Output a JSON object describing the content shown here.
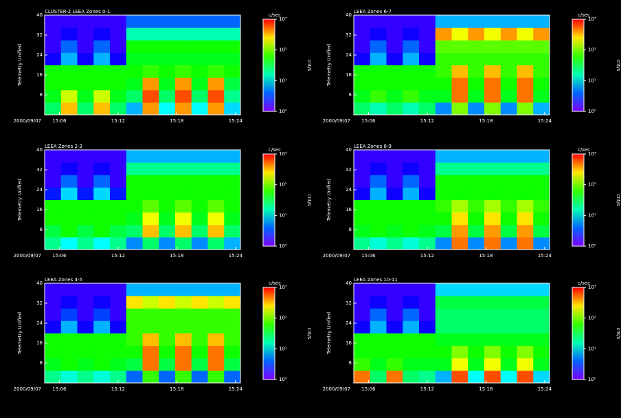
{
  "chart_data": [
    {
      "type": "heatmap",
      "title": "CLUSTER-2 LEEA Zones 0-1",
      "y_label": "Telemetry Unified",
      "date": "2000/09/07",
      "xlim": [
        4.5,
        24.5
      ],
      "xticks": [
        {
          "value": 6,
          "label": "15:06"
        },
        {
          "value": 12,
          "label": "15:12"
        },
        {
          "value": 18,
          "label": "15:18"
        },
        {
          "value": 24,
          "label": "15:24"
        }
      ],
      "ylim": [
        0,
        40
      ],
      "yticks": [
        8,
        16,
        24,
        32,
        40
      ],
      "z": [
        [
          1.4,
          2.5,
          1.4,
          2.5,
          1.4,
          0.8,
          2.6,
          1.0,
          2.6,
          1.0,
          2.6,
          0.9
        ],
        [
          1.6,
          2.2,
          1.6,
          2.2,
          1.6,
          1.4,
          2.8,
          1.4,
          2.8,
          1.4,
          2.8,
          1.3
        ],
        [
          1.7,
          1.7,
          1.7,
          1.7,
          1.7,
          1.6,
          2.6,
          1.6,
          2.6,
          1.6,
          2.6,
          1.5
        ],
        [
          1.7,
          1.7,
          1.7,
          1.7,
          1.7,
          1.7,
          1.8,
          1.7,
          1.8,
          1.7,
          1.8,
          1.7
        ],
        [
          0.3,
          0.8,
          0.3,
          0.8,
          0.3,
          1.6,
          1.6,
          1.6,
          1.6,
          1.6,
          1.6,
          1.6
        ],
        [
          0.2,
          0.6,
          0.2,
          0.6,
          0.2,
          1.7,
          1.7,
          1.7,
          1.7,
          1.7,
          1.7,
          1.7
        ],
        [
          0.2,
          0.3,
          0.2,
          0.3,
          0.2,
          1.2,
          1.2,
          1.2,
          1.2,
          1.2,
          1.2,
          1.2
        ],
        [
          0.2,
          0.2,
          0.2,
          0.2,
          0.2,
          0.6,
          0.6,
          0.6,
          0.6,
          0.6,
          0.6,
          0.6
        ]
      ],
      "colorbar": {
        "label": "c/sec",
        "side_label": "cnt/s",
        "lim": [
          0,
          3
        ],
        "ticks": [
          {
            "value": 0,
            "label": "10⁰"
          },
          {
            "value": 1,
            "label": "10¹"
          },
          {
            "value": 2,
            "label": "10²"
          },
          {
            "value": 3,
            "label": "10³"
          }
        ]
      }
    },
    {
      "type": "heatmap",
      "title": "LEEA Zones 2-3",
      "y_label": "Telemetry Unified",
      "date": "2000/09/07",
      "xlim": [
        4.5,
        24.5
      ],
      "xticks": [
        {
          "value": 6,
          "label": "15:06"
        },
        {
          "value": 12,
          "label": "15:12"
        },
        {
          "value": 18,
          "label": "15:18"
        },
        {
          "value": 24,
          "label": "15:24"
        }
      ],
      "ylim": [
        0,
        40
      ],
      "yticks": [
        8,
        16,
        24,
        32,
        40
      ],
      "z": [
        [
          1.3,
          1.0,
          1.3,
          1.0,
          1.3,
          0.7,
          1.4,
          0.7,
          1.4,
          0.7,
          1.4,
          0.8
        ],
        [
          1.5,
          1.7,
          1.5,
          1.7,
          1.5,
          1.4,
          2.5,
          1.4,
          2.5,
          1.4,
          2.5,
          1.4
        ],
        [
          1.7,
          1.7,
          1.7,
          1.7,
          1.7,
          1.6,
          2.3,
          1.6,
          2.3,
          1.6,
          2.3,
          1.6
        ],
        [
          1.7,
          1.7,
          1.7,
          1.7,
          1.7,
          1.7,
          1.9,
          1.7,
          1.9,
          1.7,
          1.9,
          1.7
        ],
        [
          0.4,
          0.9,
          0.4,
          0.9,
          0.4,
          1.7,
          1.7,
          1.7,
          1.7,
          1.7,
          1.7,
          1.7
        ],
        [
          0.2,
          0.6,
          0.2,
          0.6,
          0.2,
          1.7,
          1.7,
          1.7,
          1.7,
          1.7,
          1.7,
          1.7
        ],
        [
          0.2,
          0.3,
          0.2,
          0.3,
          0.2,
          1.3,
          1.3,
          1.3,
          1.3,
          1.3,
          1.3,
          1.3
        ],
        [
          0.2,
          0.2,
          0.2,
          0.2,
          0.2,
          0.8,
          0.8,
          0.8,
          0.8,
          0.8,
          0.8,
          0.8
        ]
      ],
      "colorbar": {
        "label": "c/sec",
        "side_label": "cnt/s",
        "lim": [
          0,
          3
        ],
        "ticks": [
          {
            "value": 0,
            "label": "10⁰"
          },
          {
            "value": 1,
            "label": "10¹"
          },
          {
            "value": 2,
            "label": "10²"
          },
          {
            "value": 3,
            "label": "10³"
          }
        ]
      }
    },
    {
      "type": "heatmap",
      "title": "LEEA Zones 4-5",
      "y_label": "Telemetry Unified",
      "date": "2000/09/07",
      "xlim": [
        4.5,
        24.5
      ],
      "xticks": [
        {
          "value": 6,
          "label": "15:06"
        },
        {
          "value": 12,
          "label": "15:12"
        },
        {
          "value": 18,
          "label": "15:18"
        },
        {
          "value": 24,
          "label": "15:24"
        }
      ],
      "ylim": [
        0,
        40
      ],
      "yticks": [
        8,
        16,
        24,
        32,
        40
      ],
      "z": [
        [
          1.3,
          1.1,
          1.3,
          1.1,
          1.3,
          0.6,
          1.8,
          0.6,
          1.8,
          0.6,
          1.8,
          0.6
        ],
        [
          1.6,
          1.7,
          1.6,
          1.7,
          1.6,
          1.5,
          2.7,
          1.5,
          2.7,
          1.5,
          2.7,
          1.5
        ],
        [
          1.7,
          1.7,
          1.7,
          1.7,
          1.7,
          1.7,
          2.7,
          1.7,
          2.7,
          1.7,
          2.7,
          1.7
        ],
        [
          1.7,
          1.7,
          1.7,
          1.7,
          1.7,
          1.8,
          2.5,
          1.8,
          2.5,
          1.8,
          2.5,
          1.8
        ],
        [
          0.3,
          0.8,
          0.3,
          0.8,
          0.3,
          1.8,
          1.8,
          1.8,
          1.8,
          1.8,
          1.8,
          1.8
        ],
        [
          0.2,
          0.5,
          0.2,
          0.5,
          0.2,
          1.8,
          1.8,
          1.8,
          1.8,
          1.8,
          1.8,
          1.8
        ],
        [
          0.2,
          0.3,
          0.2,
          0.3,
          0.2,
          2.4,
          2.2,
          2.4,
          2.2,
          2.4,
          2.2,
          2.4
        ],
        [
          0.2,
          0.2,
          0.2,
          0.2,
          0.2,
          0.8,
          0.8,
          0.8,
          0.8,
          0.8,
          0.8,
          0.8
        ]
      ],
      "colorbar": {
        "label": "c/sec",
        "side_label": "cnt/s",
        "lim": [
          0,
          3
        ],
        "ticks": [
          {
            "value": 0,
            "label": "10⁰"
          },
          {
            "value": 1,
            "label": "10¹"
          },
          {
            "value": 2,
            "label": "10²"
          },
          {
            "value": 3,
            "label": "10³"
          }
        ]
      }
    },
    {
      "type": "heatmap",
      "title": "LEEA Zones 6-7",
      "y_label": "Telemetry Unified",
      "date": "2000/09/07",
      "xlim": [
        4.5,
        24.5
      ],
      "xticks": [
        {
          "value": 6,
          "label": "15:06"
        },
        {
          "value": 12,
          "label": "15:12"
        },
        {
          "value": 18,
          "label": "15:18"
        },
        {
          "value": 24,
          "label": "15:24"
        }
      ],
      "ylim": [
        0,
        40
      ],
      "yticks": [
        8,
        16,
        24,
        32,
        40
      ],
      "z": [
        [
          1.4,
          1.2,
          1.4,
          1.2,
          1.4,
          0.7,
          2.0,
          0.7,
          2.0,
          0.7,
          2.0,
          0.8
        ],
        [
          1.6,
          1.8,
          1.6,
          1.8,
          1.6,
          1.6,
          2.7,
          1.6,
          2.7,
          1.6,
          2.7,
          1.6
        ],
        [
          1.7,
          1.7,
          1.7,
          1.7,
          1.7,
          1.7,
          2.7,
          1.7,
          2.7,
          1.7,
          2.7,
          1.7
        ],
        [
          1.7,
          1.7,
          1.7,
          1.7,
          1.7,
          1.8,
          2.5,
          1.8,
          2.5,
          1.8,
          2.5,
          1.8
        ],
        [
          0.3,
          0.8,
          0.3,
          0.8,
          0.3,
          1.8,
          1.8,
          1.8,
          1.8,
          1.8,
          1.8,
          1.8
        ],
        [
          0.2,
          0.6,
          0.2,
          0.6,
          0.2,
          1.9,
          1.9,
          1.9,
          1.9,
          1.9,
          1.9,
          1.9
        ],
        [
          0.2,
          0.3,
          0.2,
          0.3,
          0.2,
          2.6,
          2.3,
          2.6,
          2.3,
          2.6,
          2.3,
          2.6
        ],
        [
          0.2,
          0.2,
          0.2,
          0.2,
          0.2,
          0.8,
          0.8,
          0.8,
          0.8,
          0.8,
          0.8,
          0.8
        ]
      ],
      "colorbar": {
        "label": "c/sec",
        "side_label": "cnt/s",
        "lim": [
          0,
          3
        ],
        "ticks": [
          {
            "value": 0,
            "label": "10⁰"
          },
          {
            "value": 1,
            "label": "10¹"
          },
          {
            "value": 2,
            "label": "10²"
          },
          {
            "value": 3,
            "label": "10³"
          }
        ]
      }
    },
    {
      "type": "heatmap",
      "title": "LEEA Zones 8-9",
      "y_label": "Telemetry Unified",
      "date": "2000/09/07",
      "xlim": [
        4.5,
        24.5
      ],
      "xticks": [
        {
          "value": 6,
          "label": "15:06"
        },
        {
          "value": 12,
          "label": "15:12"
        },
        {
          "value": 18,
          "label": "15:18"
        },
        {
          "value": 24,
          "label": "15:24"
        }
      ],
      "ylim": [
        0,
        40
      ],
      "yticks": [
        8,
        16,
        24,
        32,
        40
      ],
      "z": [
        [
          1.3,
          1.1,
          1.3,
          1.1,
          1.3,
          0.7,
          2.7,
          0.7,
          2.7,
          0.7,
          2.7,
          0.7
        ],
        [
          1.6,
          1.7,
          1.6,
          1.7,
          1.6,
          1.5,
          2.6,
          1.5,
          2.6,
          1.5,
          2.6,
          1.5
        ],
        [
          1.7,
          1.7,
          1.7,
          1.7,
          1.7,
          1.7,
          2.4,
          1.7,
          2.4,
          1.7,
          2.4,
          1.7
        ],
        [
          1.7,
          1.7,
          1.7,
          1.7,
          1.7,
          1.8,
          2.1,
          1.8,
          2.1,
          1.8,
          2.1,
          1.8
        ],
        [
          0.3,
          0.8,
          0.3,
          0.8,
          0.3,
          1.7,
          1.7,
          1.7,
          1.7,
          1.7,
          1.7,
          1.7
        ],
        [
          0.2,
          0.6,
          0.2,
          0.6,
          0.2,
          1.7,
          1.7,
          1.7,
          1.7,
          1.7,
          1.7,
          1.7
        ],
        [
          0.2,
          0.3,
          0.2,
          0.3,
          0.2,
          1.3,
          1.3,
          1.3,
          1.3,
          1.3,
          1.3,
          1.3
        ],
        [
          0.2,
          0.2,
          0.2,
          0.2,
          0.2,
          0.8,
          0.8,
          0.8,
          0.8,
          0.8,
          0.8,
          0.8
        ]
      ],
      "colorbar": {
        "label": "c/sec",
        "side_label": "cnt/s",
        "lim": [
          0,
          3
        ],
        "ticks": [
          {
            "value": 0,
            "label": "10⁰"
          },
          {
            "value": 1,
            "label": "10¹"
          },
          {
            "value": 2,
            "label": "10²"
          },
          {
            "value": 3,
            "label": "10³"
          }
        ]
      }
    },
    {
      "type": "heatmap",
      "title": "LEEA Zones 10-11",
      "y_label": "Telemetry Unified",
      "date": "2000/09/07",
      "xlim": [
        4.5,
        24.5
      ],
      "xticks": [
        {
          "value": 6,
          "label": "15:06"
        },
        {
          "value": 12,
          "label": "15:12"
        },
        {
          "value": 18,
          "label": "15:18"
        },
        {
          "value": 24,
          "label": "15:24"
        }
      ],
      "ylim": [
        0,
        40
      ],
      "yticks": [
        8,
        16,
        24,
        32,
        40
      ],
      "z": [
        [
          2.7,
          1.4,
          2.7,
          1.4,
          1.3,
          0.8,
          2.8,
          1.0,
          2.8,
          1.0,
          2.8,
          0.9
        ],
        [
          1.8,
          1.6,
          1.8,
          1.6,
          1.6,
          1.6,
          2.3,
          1.6,
          2.3,
          1.6,
          2.3,
          1.6
        ],
        [
          1.7,
          1.7,
          1.7,
          1.7,
          1.7,
          1.7,
          2.0,
          1.7,
          2.0,
          1.7,
          2.0,
          1.7
        ],
        [
          1.7,
          1.7,
          1.7,
          1.7,
          1.7,
          1.6,
          1.6,
          1.6,
          1.6,
          1.6,
          1.6,
          1.6
        ],
        [
          0.3,
          0.8,
          0.3,
          0.8,
          0.3,
          1.4,
          1.4,
          1.4,
          1.4,
          1.4,
          1.4,
          1.4
        ],
        [
          0.2,
          0.6,
          0.2,
          0.6,
          0.2,
          1.4,
          1.4,
          1.4,
          1.4,
          1.4,
          1.4,
          1.4
        ],
        [
          0.2,
          0.3,
          0.2,
          0.3,
          0.2,
          1.5,
          1.5,
          1.5,
          1.5,
          1.5,
          1.5,
          1.5
        ],
        [
          0.2,
          0.2,
          0.2,
          0.2,
          0.2,
          0.9,
          0.9,
          0.9,
          0.9,
          0.9,
          0.9,
          0.9
        ]
      ],
      "colorbar": {
        "label": "c/sec",
        "side_label": "cnt/s",
        "lim": [
          0,
          3
        ],
        "ticks": [
          {
            "value": 0,
            "label": "10⁰"
          },
          {
            "value": 1,
            "label": "10¹"
          },
          {
            "value": 2,
            "label": "10²"
          },
          {
            "value": 3,
            "label": "10³"
          }
        ]
      }
    }
  ]
}
